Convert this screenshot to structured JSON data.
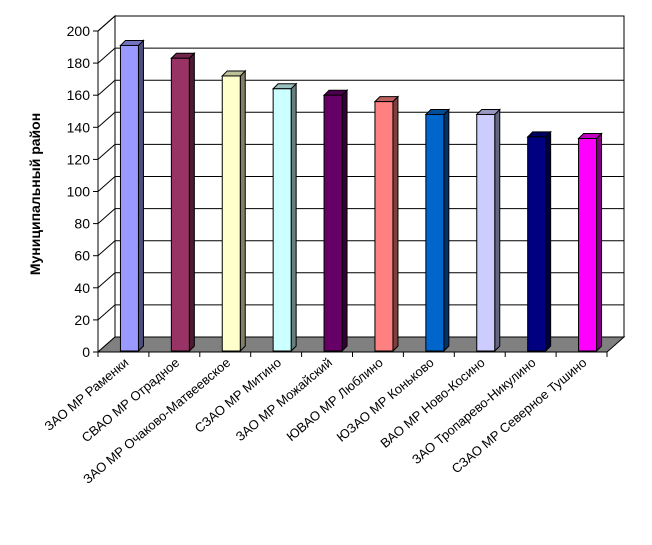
{
  "chart_data": {
    "type": "bar",
    "style": "3d-column",
    "ylabel": "Муниципальный район",
    "xlabel": "",
    "title": "",
    "ylim": [
      0,
      200
    ],
    "ytick_step": 20,
    "grid": true,
    "categories": [
      "ЗАО МР Раменки",
      "СВАО МР Отрадное",
      "ЗАО МР Очаково-Матвеевское",
      "СЗАО  МР Митино",
      "ЗАО МР Можайский",
      "ЮВАО МР Люблино",
      "ЮЗАО МР Коньково",
      "ВАО МР Ново-Косино",
      "ЗАО Тропарево-Никулино",
      "СЗАО МР Северное Тушино"
    ],
    "values": [
      191,
      183,
      172,
      164,
      160,
      156,
      148,
      148,
      134,
      133
    ],
    "colors": [
      "#9999ff",
      "#993366",
      "#ffffcc",
      "#ccffff",
      "#660066",
      "#ff8080",
      "#0066cc",
      "#ccccff",
      "#000080",
      "#ff00ff"
    ],
    "colors_side": [
      "#4d4d80",
      "#4d1a33",
      "#808066",
      "#668080",
      "#330033",
      "#804040",
      "#003366",
      "#666680",
      "#000040",
      "#800080"
    ],
    "colors_top": [
      "#7373bf",
      "#73264d",
      "#bfbf99",
      "#99bfbf",
      "#4d004d",
      "#bf6060",
      "#004d99",
      "#9999bf",
      "#000060",
      "#bf00bf"
    ],
    "wall_color": "#ffffff",
    "floor_color": "#808080",
    "grid_color": "#000000"
  }
}
